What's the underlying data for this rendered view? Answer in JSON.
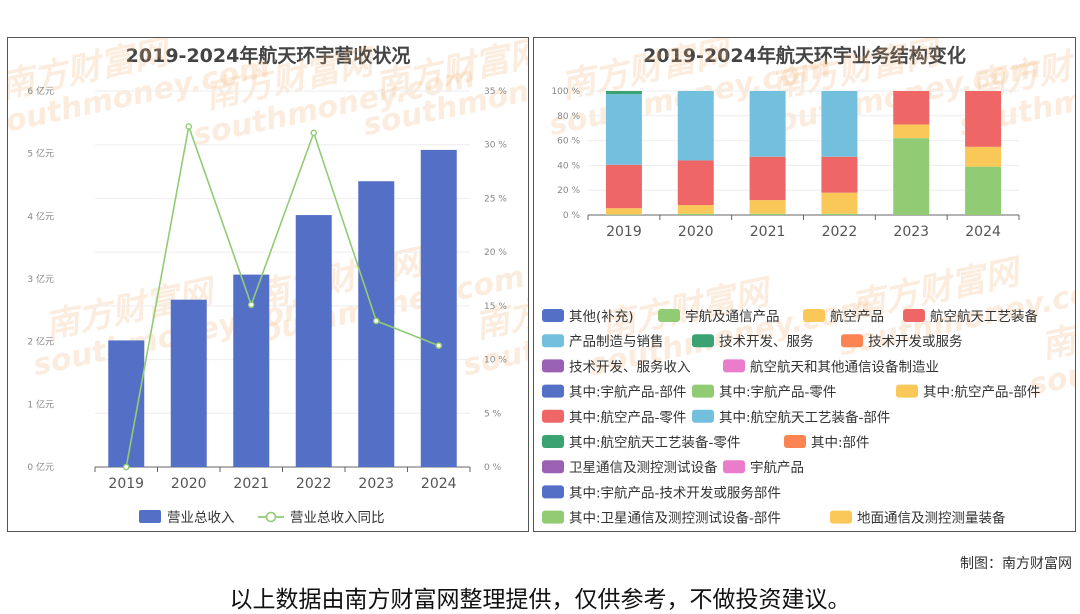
{
  "chart_data": [
    {
      "type": "bar",
      "title": "2019-2024年航天环宇营收状况",
      "categories": [
        "2019",
        "2020",
        "2021",
        "2022",
        "2023",
        "2024"
      ],
      "series": [
        {
          "name": "营业总收入",
          "type": "bar",
          "axis": "left",
          "values": [
            2.02,
            2.67,
            3.07,
            4.02,
            4.56,
            5.06
          ],
          "color": "#5470c6"
        },
        {
          "name": "营业总收入同比",
          "type": "line",
          "axis": "right",
          "values": [
            0,
            31.7,
            15.1,
            31.1,
            13.6,
            11.3
          ],
          "color": "#91cc75"
        }
      ],
      "y_left": {
        "ticks": [
          "0 亿元",
          "1 亿元",
          "2 亿元",
          "3 亿元",
          "4 亿元",
          "5 亿元",
          "6 亿元"
        ],
        "range": [
          0,
          6
        ]
      },
      "y_right": {
        "ticks": [
          "0 %",
          "5 %",
          "10 %",
          "15 %",
          "20 %",
          "25 %",
          "30 %",
          "35 %"
        ],
        "range": [
          0,
          35
        ]
      },
      "legend": "bottom"
    },
    {
      "type": "bar",
      "stacked": "percent",
      "title": "2019-2024年航天环宇业务结构变化",
      "categories": [
        "2019",
        "2020",
        "2021",
        "2022",
        "2023",
        "2024"
      ],
      "y_ticks": [
        "0 %",
        "20 %",
        "40 %",
        "60 %",
        "80 %",
        "100 %"
      ],
      "ylim": [
        0,
        100
      ],
      "series": [
        {
          "name": "其他(补充)",
          "color": "#5470c6",
          "values": [
            0,
            0,
            0,
            0,
            0,
            0
          ]
        },
        {
          "name": "宇航及通信产品",
          "color": "#91cc75",
          "values": [
            0.5,
            1,
            1,
            1,
            62,
            39
          ]
        },
        {
          "name": "航空产品",
          "color": "#fac858",
          "values": [
            5,
            7,
            11,
            17,
            11,
            16
          ]
        },
        {
          "name": "航空航天工艺装备",
          "color": "#ee6666",
          "values": [
            35,
            36,
            35,
            29,
            27,
            45
          ]
        },
        {
          "name": "产品制造与销售",
          "color": "#73c0de",
          "values": [
            57,
            56,
            53,
            53,
            0,
            0
          ]
        },
        {
          "name": "技术开发、服务",
          "color": "#3ba272",
          "values": [
            2.5,
            0,
            0,
            0,
            0,
            0
          ]
        },
        {
          "name": "技术开发或服务",
          "color": "#fc8452",
          "values": [
            0,
            0,
            0,
            0,
            0,
            0
          ]
        },
        {
          "name": "技术开发、服务收入",
          "color": "#9a60b4",
          "values": [
            0,
            0,
            0,
            0,
            0,
            0
          ]
        },
        {
          "name": "航空航天和其他通信设备制造业",
          "color": "#ea7ccc",
          "values": [
            0,
            0,
            0,
            0,
            0,
            0
          ]
        },
        {
          "name": "其中:宇航产品-部件",
          "color": "#5470c6",
          "values": [
            0,
            0,
            0,
            0,
            0,
            0
          ]
        },
        {
          "name": "其中:宇航产品-零件",
          "color": "#91cc75",
          "values": [
            0,
            0,
            0,
            0,
            0,
            0
          ]
        },
        {
          "name": "其中:航空产品-部件",
          "color": "#fac858",
          "values": [
            0,
            0,
            0,
            0,
            0,
            0
          ]
        },
        {
          "name": "其中:航空产品-零件",
          "color": "#ee6666",
          "values": [
            0,
            0,
            0,
            0,
            0,
            0
          ]
        },
        {
          "name": "其中:航空航天工艺装备-部件",
          "color": "#73c0de",
          "values": [
            0,
            0,
            0,
            0,
            0,
            0
          ]
        },
        {
          "name": "其中:航空航天工艺装备-零件",
          "color": "#3ba272",
          "values": [
            0,
            0,
            0,
            0,
            0,
            0
          ]
        },
        {
          "name": "其中:部件",
          "color": "#fc8452",
          "values": [
            0,
            0,
            0,
            0,
            0,
            0
          ]
        },
        {
          "name": "卫星通信及测控测试设备",
          "color": "#9a60b4",
          "values": [
            0,
            0,
            0,
            0,
            0,
            0
          ]
        },
        {
          "name": "宇航产品",
          "color": "#ea7ccc",
          "values": [
            0,
            0,
            0,
            0,
            0,
            0
          ]
        },
        {
          "name": "其中:宇航产品-技术开发或服务部件",
          "color": "#5470c6",
          "values": [
            0,
            0,
            0,
            0,
            0,
            0
          ]
        },
        {
          "name": "其中:卫星通信及测控测试设备-部件",
          "color": "#91cc75",
          "values": [
            0,
            0,
            0,
            0,
            0,
            0
          ]
        },
        {
          "name": "地面通信及测控测量装备",
          "color": "#fac858",
          "values": [
            0,
            0,
            0,
            0,
            0,
            0
          ]
        }
      ],
      "legend": "bottom"
    }
  ],
  "watermark": {
    "cn": "南方财富网",
    "en": "southmoney.com"
  },
  "footer": {
    "credit": "制图：南方财富网",
    "disclaimer": "以上数据由南方财富网整理提供，仅供参考，不做投资建议。"
  }
}
